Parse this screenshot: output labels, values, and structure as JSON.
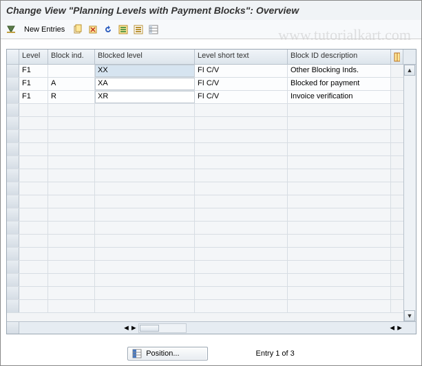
{
  "title": "Change View \"Planning Levels with Payment Blocks\": Overview",
  "toolbar": {
    "new_entries_label": "New Entries"
  },
  "watermark": "www.tutorialkart.com",
  "columns": {
    "level": "Level",
    "block_ind": "Block ind.",
    "blocked_level": "Blocked level",
    "level_short": "Level short text",
    "block_desc": "Block ID description"
  },
  "rows": [
    {
      "level": "F1",
      "block_ind": "",
      "blocked_level": "XX",
      "level_short": "FI C/V",
      "block_desc": "Other Blocking Inds."
    },
    {
      "level": "F1",
      "block_ind": "A",
      "blocked_level": "XA",
      "level_short": "FI C/V",
      "block_desc": "Blocked for payment"
    },
    {
      "level": "F1",
      "block_ind": "R",
      "blocked_level": "XR",
      "level_short": "FI C/V",
      "block_desc": "Invoice verification"
    }
  ],
  "empty_row_count": 16,
  "footer": {
    "position_label": "Position...",
    "entry_text": "Entry 1 of 3"
  },
  "colors": {
    "header_bg_top": "#f0f4f8",
    "header_bg_bot": "#dde5ec",
    "grid_border": "#9aa6b2",
    "cell_border": "#d7dde3",
    "selected_bg": "#d6e4f0"
  }
}
